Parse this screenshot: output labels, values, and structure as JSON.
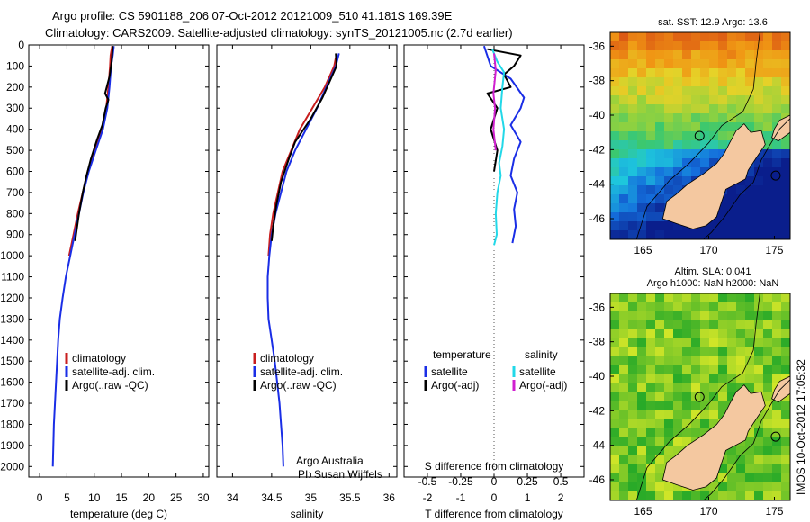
{
  "header": {
    "line1": "Argo profile: CS 5901188_206 07-Oct-2012 20121009_510 41.181S 169.39E",
    "line2": "Climatology: CARS2009. Satellite-adjusted climatology: synTS_20121005.nc (2.7d earlier)"
  },
  "side_label": "IMOS 10-Oct-2012 17:05:32",
  "colors": {
    "clim": "#c81e1e",
    "sat": "#1a2ee6",
    "argo": "#000000",
    "sat_s": "#22d8e8",
    "argo_s": "#d020d0"
  },
  "chart_data": [
    {
      "type": "line",
      "id": "temperature",
      "xlabel": "temperature (deg C)",
      "xlim": [
        -2,
        31
      ],
      "xticks": [
        0,
        5,
        10,
        15,
        20,
        25,
        30
      ],
      "ylim": [
        0,
        2050
      ],
      "yticks": [
        0,
        100,
        200,
        300,
        400,
        500,
        600,
        700,
        800,
        900,
        1000,
        1100,
        1200,
        1300,
        1400,
        1500,
        1600,
        1700,
        1800,
        1900,
        2000
      ],
      "legend": [
        "climatology",
        "satellite-adj. clim.",
        "Argo(..raw -QC)"
      ],
      "series": [
        {
          "name": "climatology",
          "color_key": "clim",
          "points": [
            [
              13.3,
              5
            ],
            [
              13.0,
              50
            ],
            [
              12.9,
              100
            ],
            [
              12.6,
              200
            ],
            [
              12.2,
              300
            ],
            [
              11.4,
              400
            ],
            [
              10.0,
              500
            ],
            [
              8.8,
              600
            ],
            [
              7.9,
              700
            ],
            [
              7.0,
              800
            ],
            [
              6.2,
              900
            ],
            [
              5.4,
              1000
            ]
          ]
        },
        {
          "name": "satellite-adj. clim.",
          "color_key": "sat",
          "points": [
            [
              13.6,
              5
            ],
            [
              13.4,
              50
            ],
            [
              13.1,
              100
            ],
            [
              12.8,
              200
            ],
            [
              12.4,
              300
            ],
            [
              11.6,
              400
            ],
            [
              10.3,
              500
            ],
            [
              9.0,
              600
            ],
            [
              8.0,
              700
            ],
            [
              7.2,
              800
            ],
            [
              6.4,
              900
            ],
            [
              5.6,
              1000
            ],
            [
              4.8,
              1100
            ],
            [
              4.2,
              1200
            ],
            [
              3.7,
              1300
            ],
            [
              3.4,
              1400
            ],
            [
              3.2,
              1500
            ],
            [
              3.0,
              1600
            ],
            [
              2.8,
              1700
            ],
            [
              2.6,
              1800
            ],
            [
              2.5,
              1900
            ],
            [
              2.4,
              2000
            ]
          ]
        },
        {
          "name": "Argo(..raw -QC)",
          "color_key": "argo",
          "points": [
            [
              13.4,
              5
            ],
            [
              13.2,
              80
            ],
            [
              12.8,
              150
            ],
            [
              12.0,
              230
            ],
            [
              12.6,
              260
            ],
            [
              12.1,
              300
            ],
            [
              11.5,
              380
            ],
            [
              10.5,
              450
            ],
            [
              9.4,
              540
            ],
            [
              8.6,
              620
            ],
            [
              7.9,
              700
            ],
            [
              7.2,
              800
            ],
            [
              6.5,
              930
            ]
          ]
        }
      ]
    },
    {
      "type": "line",
      "id": "salinity",
      "xlabel": "salinity",
      "xlim": [
        33.8,
        36.1
      ],
      "xticks": [
        34,
        34.5,
        35,
        35.5,
        36
      ],
      "ylim": [
        0,
        2050
      ],
      "legend": [
        "climatology",
        "satellite-adj. clim.",
        "Argo(..raw -QC)"
      ],
      "annotation": [
        "Argo Australia",
        "PI: Susan Wijffels"
      ],
      "series": [
        {
          "name": "climatology",
          "color_key": "clim",
          "points": [
            [
              35.32,
              60
            ],
            [
              35.3,
              100
            ],
            [
              35.18,
              200
            ],
            [
              35.02,
              300
            ],
            [
              34.86,
              400
            ],
            [
              34.75,
              500
            ],
            [
              34.64,
              600
            ],
            [
              34.58,
              700
            ],
            [
              34.52,
              800
            ],
            [
              34.48,
              900
            ],
            [
              34.46,
              1000
            ]
          ]
        },
        {
          "name": "satellite-adj. clim.",
          "color_key": "sat",
          "points": [
            [
              35.36,
              40
            ],
            [
              35.32,
              100
            ],
            [
              35.2,
              200
            ],
            [
              35.08,
              300
            ],
            [
              34.94,
              400
            ],
            [
              34.8,
              500
            ],
            [
              34.69,
              600
            ],
            [
              34.62,
              700
            ],
            [
              34.55,
              800
            ],
            [
              34.5,
              900
            ],
            [
              34.47,
              1000
            ],
            [
              34.45,
              1100
            ],
            [
              34.45,
              1200
            ],
            [
              34.46,
              1300
            ],
            [
              34.5,
              1400
            ],
            [
              34.54,
              1500
            ],
            [
              34.57,
              1600
            ],
            [
              34.6,
              1700
            ],
            [
              34.62,
              1800
            ],
            [
              34.64,
              1900
            ],
            [
              34.65,
              2000
            ]
          ]
        },
        {
          "name": "Argo(..raw -QC)",
          "color_key": "argo",
          "points": [
            [
              35.32,
              40
            ],
            [
              35.33,
              100
            ],
            [
              35.15,
              250
            ],
            [
              35.0,
              350
            ],
            [
              34.8,
              460
            ],
            [
              34.72,
              540
            ],
            [
              34.62,
              650
            ],
            [
              34.56,
              760
            ],
            [
              34.52,
              860
            ],
            [
              34.5,
              930
            ]
          ]
        }
      ]
    },
    {
      "type": "line",
      "id": "difference",
      "xlabel": "T difference from climatology",
      "xlabel_top": "S difference from climatology",
      "xlim": [
        -2.7,
        2.7
      ],
      "xticks": [
        -2,
        -1,
        0,
        1,
        2
      ],
      "s_ticks": [
        "-0.5",
        "-0.25",
        "0",
        "0.25",
        "0.5"
      ],
      "ylim": [
        0,
        2050
      ],
      "legend_headers": [
        "temperature",
        "salinity"
      ],
      "legend": [
        "satellite",
        "Argo(-adj)",
        "satellite",
        "Argo(-adj)"
      ],
      "series": [
        {
          "name": "satellite",
          "color_key": "sat",
          "points": [
            [
              -0.3,
              5
            ],
            [
              -0.1,
              100
            ],
            [
              0.5,
              160
            ],
            [
              0.9,
              250
            ],
            [
              0.8,
              300
            ],
            [
              0.5,
              380
            ],
            [
              0.8,
              460
            ],
            [
              0.6,
              540
            ],
            [
              0.5,
              620
            ],
            [
              0.7,
              700
            ],
            [
              0.6,
              780
            ],
            [
              0.65,
              860
            ],
            [
              0.55,
              940
            ]
          ]
        },
        {
          "name": "Argo(-adj)",
          "color_key": "argo",
          "points": [
            [
              -0.2,
              20
            ],
            [
              0.8,
              50
            ],
            [
              0.6,
              100
            ],
            [
              0.3,
              140
            ],
            [
              0.5,
              200
            ],
            [
              -0.2,
              230
            ],
            [
              0.1,
              300
            ],
            [
              -0.1,
              400
            ],
            [
              0.1,
              500
            ],
            [
              0.0,
              600
            ]
          ]
        },
        {
          "name": "satellite",
          "color_key": "sat_s",
          "points": [
            [
              -0.05,
              20
            ],
            [
              0.1,
              80
            ],
            [
              0.3,
              130
            ],
            [
              0.25,
              200
            ],
            [
              0.2,
              300
            ],
            [
              0.3,
              400
            ],
            [
              0.25,
              480
            ],
            [
              0.15,
              560
            ],
            [
              0.2,
              620
            ],
            [
              0.1,
              700
            ],
            [
              0.05,
              800
            ],
            [
              0.08,
              900
            ],
            [
              0.0,
              950
            ]
          ]
        },
        {
          "name": "Argo(-adj)",
          "color_key": "argo_s",
          "points": [
            [
              0.0,
              40
            ],
            [
              0.05,
              120
            ],
            [
              -0.02,
              230
            ],
            [
              0.03,
              300
            ],
            [
              -0.02,
              400
            ],
            [
              0.05,
              500
            ]
          ]
        }
      ]
    }
  ],
  "maps": [
    {
      "id": "sst-map",
      "title": [
        "sat. SST: 12.9 Argo: 13.6"
      ],
      "xlim": [
        162.5,
        176.2
      ],
      "xticks": [
        165,
        170,
        175
      ],
      "ylim": [
        -47.2,
        -35.2
      ],
      "yticks": [
        -36,
        -38,
        -40,
        -42,
        -44,
        -46
      ],
      "markers": [
        [
          169.3,
          -41.2
        ],
        [
          175.1,
          -43.5
        ]
      ]
    },
    {
      "id": "sla-map",
      "title": [
        "Altim. SLA: 0.041",
        "Argo h1000: NaN h2000: NaN"
      ],
      "xlim": [
        162.5,
        176.2
      ],
      "xticks": [
        165,
        170,
        175
      ],
      "ylim": [
        -47.2,
        -35.2
      ],
      "yticks": [
        -36,
        -38,
        -40,
        -42,
        -44,
        -46
      ],
      "markers": [
        [
          169.3,
          -41.2
        ],
        [
          175.1,
          -43.5
        ]
      ]
    }
  ]
}
